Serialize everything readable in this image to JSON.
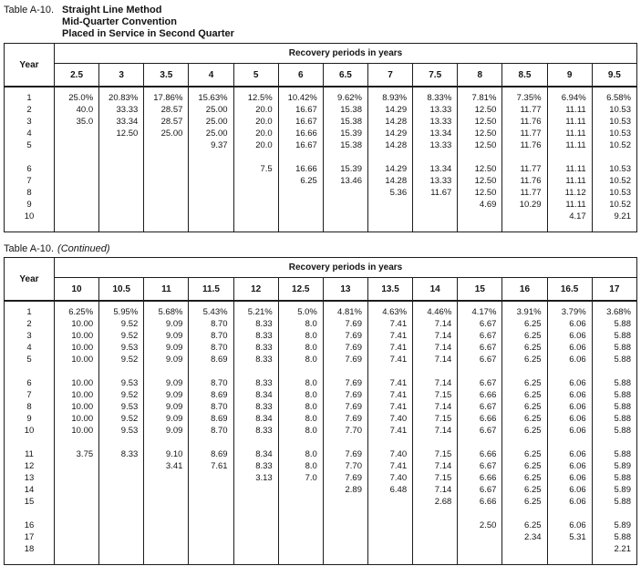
{
  "table1": {
    "label": "Table A-10.",
    "title_lines": [
      "Straight Line Method",
      "Mid-Quarter Convention",
      "Placed in Service in Second Quarter"
    ],
    "year_header": "Year",
    "periods_header": "Recovery periods in years",
    "periods": [
      "2.5",
      "3",
      "3.5",
      "4",
      "5",
      "6",
      "6.5",
      "7",
      "7.5",
      "8",
      "8.5",
      "9",
      "9.5"
    ],
    "row_groups": [
      [
        {
          "year": "1",
          "values": [
            "25.0%",
            "20.83%",
            "17.86%",
            "15.63%",
            "12.5%",
            "10.42%",
            "9.62%",
            "8.93%",
            "8.33%",
            "7.81%",
            "7.35%",
            "6.94%",
            "6.58%"
          ]
        },
        {
          "year": "2",
          "values": [
            "40.0",
            "33.33",
            "28.57",
            "25.00",
            "20.0",
            "16.67",
            "15.38",
            "14.29",
            "13.33",
            "12.50",
            "11.77",
            "11.11",
            "10.53"
          ]
        },
        {
          "year": "3",
          "values": [
            "35.0",
            "33.34",
            "28.57",
            "25.00",
            "20.0",
            "16.67",
            "15.38",
            "14.28",
            "13.33",
            "12.50",
            "11.76",
            "11.11",
            "10.53"
          ]
        },
        {
          "year": "4",
          "values": [
            "",
            "12.50",
            "25.00",
            "25.00",
            "20.0",
            "16.66",
            "15.39",
            "14.29",
            "13.34",
            "12.50",
            "11.77",
            "11.11",
            "10.53"
          ]
        },
        {
          "year": "5",
          "values": [
            "",
            "",
            "",
            "9.37",
            "20.0",
            "16.67",
            "15.38",
            "14.28",
            "13.33",
            "12.50",
            "11.76",
            "11.11",
            "10.52"
          ]
        }
      ],
      [
        {
          "year": "6",
          "values": [
            "",
            "",
            "",
            "",
            "7.5",
            "16.66",
            "15.39",
            "14.29",
            "13.34",
            "12.50",
            "11.77",
            "11.11",
            "10.53"
          ]
        },
        {
          "year": "7",
          "values": [
            "",
            "",
            "",
            "",
            "",
            "6.25",
            "13.46",
            "14.28",
            "13.33",
            "12.50",
            "11.76",
            "11.11",
            "10.52"
          ]
        },
        {
          "year": "8",
          "values": [
            "",
            "",
            "",
            "",
            "",
            "",
            "",
            "5.36",
            "11.67",
            "12.50",
            "11.77",
            "11.12",
            "10.53"
          ]
        },
        {
          "year": "9",
          "values": [
            "",
            "",
            "",
            "",
            "",
            "",
            "",
            "",
            "",
            "4.69",
            "10.29",
            "11.11",
            "10.52"
          ]
        },
        {
          "year": "10",
          "values": [
            "",
            "",
            "",
            "",
            "",
            "",
            "",
            "",
            "",
            "",
            "",
            "4.17",
            "9.21"
          ]
        }
      ]
    ]
  },
  "table2": {
    "label": "Table A-10.",
    "continued": "(Continued)",
    "year_header": "Year",
    "periods_header": "Recovery periods in years",
    "periods": [
      "10",
      "10.5",
      "11",
      "11.5",
      "12",
      "12.5",
      "13",
      "13.5",
      "14",
      "15",
      "16",
      "16.5",
      "17"
    ],
    "row_groups": [
      [
        {
          "year": "1",
          "values": [
            "6.25%",
            "5.95%",
            "5.68%",
            "5.43%",
            "5.21%",
            "5.0%",
            "4.81%",
            "4.63%",
            "4.46%",
            "4.17%",
            "3.91%",
            "3.79%",
            "3.68%"
          ]
        },
        {
          "year": "2",
          "values": [
            "10.00",
            "9.52",
            "9.09",
            "8.70",
            "8.33",
            "8.0",
            "7.69",
            "7.41",
            "7.14",
            "6.67",
            "6.25",
            "6.06",
            "5.88"
          ]
        },
        {
          "year": "3",
          "values": [
            "10.00",
            "9.52",
            "9.09",
            "8.70",
            "8.33",
            "8.0",
            "7.69",
            "7.41",
            "7.14",
            "6.67",
            "6.25",
            "6.06",
            "5.88"
          ]
        },
        {
          "year": "4",
          "values": [
            "10.00",
            "9.53",
            "9.09",
            "8.70",
            "8.33",
            "8.0",
            "7.69",
            "7.41",
            "7.14",
            "6.67",
            "6.25",
            "6.06",
            "5.88"
          ]
        },
        {
          "year": "5",
          "values": [
            "10.00",
            "9.52",
            "9.09",
            "8.69",
            "8.33",
            "8.0",
            "7.69",
            "7.41",
            "7.14",
            "6.67",
            "6.25",
            "6.06",
            "5.88"
          ]
        }
      ],
      [
        {
          "year": "6",
          "values": [
            "10.00",
            "9.53",
            "9.09",
            "8.70",
            "8.33",
            "8.0",
            "7.69",
            "7.41",
            "7.14",
            "6.67",
            "6.25",
            "6.06",
            "5.88"
          ]
        },
        {
          "year": "7",
          "values": [
            "10.00",
            "9.52",
            "9.09",
            "8.69",
            "8.34",
            "8.0",
            "7.69",
            "7.41",
            "7.15",
            "6.66",
            "6.25",
            "6.06",
            "5.88"
          ]
        },
        {
          "year": "8",
          "values": [
            "10.00",
            "9.53",
            "9.09",
            "8.70",
            "8.33",
            "8.0",
            "7.69",
            "7.41",
            "7.14",
            "6.67",
            "6.25",
            "6.06",
            "5.88"
          ]
        },
        {
          "year": "9",
          "values": [
            "10.00",
            "9.52",
            "9.09",
            "8.69",
            "8.34",
            "8.0",
            "7.69",
            "7.40",
            "7.15",
            "6.66",
            "6.25",
            "6.06",
            "5.88"
          ]
        },
        {
          "year": "10",
          "values": [
            "10.00",
            "9.53",
            "9.09",
            "8.70",
            "8.33",
            "8.0",
            "7.70",
            "7.41",
            "7.14",
            "6.67",
            "6.25",
            "6.06",
            "5.88"
          ]
        }
      ],
      [
        {
          "year": "11",
          "values": [
            "3.75",
            "8.33",
            "9.10",
            "8.69",
            "8.34",
            "8.0",
            "7.69",
            "7.40",
            "7.15",
            "6.66",
            "6.25",
            "6.06",
            "5.88"
          ]
        },
        {
          "year": "12",
          "values": [
            "",
            "",
            "3.41",
            "7.61",
            "8.33",
            "8.0",
            "7.70",
            "7.41",
            "7.14",
            "6.67",
            "6.25",
            "6.06",
            "5.89"
          ]
        },
        {
          "year": "13",
          "values": [
            "",
            "",
            "",
            "",
            "3.13",
            "7.0",
            "7.69",
            "7.40",
            "7.15",
            "6.66",
            "6.25",
            "6.06",
            "5.88"
          ]
        },
        {
          "year": "14",
          "values": [
            "",
            "",
            "",
            "",
            "",
            "",
            "2.89",
            "6.48",
            "7.14",
            "6.67",
            "6.25",
            "6.06",
            "5.89"
          ]
        },
        {
          "year": "15",
          "values": [
            "",
            "",
            "",
            "",
            "",
            "",
            "",
            "",
            "2.68",
            "6.66",
            "6.25",
            "6.06",
            "5.88"
          ]
        }
      ],
      [
        {
          "year": "16",
          "values": [
            "",
            "",
            "",
            "",
            "",
            "",
            "",
            "",
            "",
            "2.50",
            "6.25",
            "6.06",
            "5.89"
          ]
        },
        {
          "year": "17",
          "values": [
            "",
            "",
            "",
            "",
            "",
            "",
            "",
            "",
            "",
            "",
            "2.34",
            "5.31",
            "5.88"
          ]
        },
        {
          "year": "18",
          "values": [
            "",
            "",
            "",
            "",
            "",
            "",
            "",
            "",
            "",
            "",
            "",
            "",
            "2.21"
          ]
        }
      ]
    ]
  }
}
